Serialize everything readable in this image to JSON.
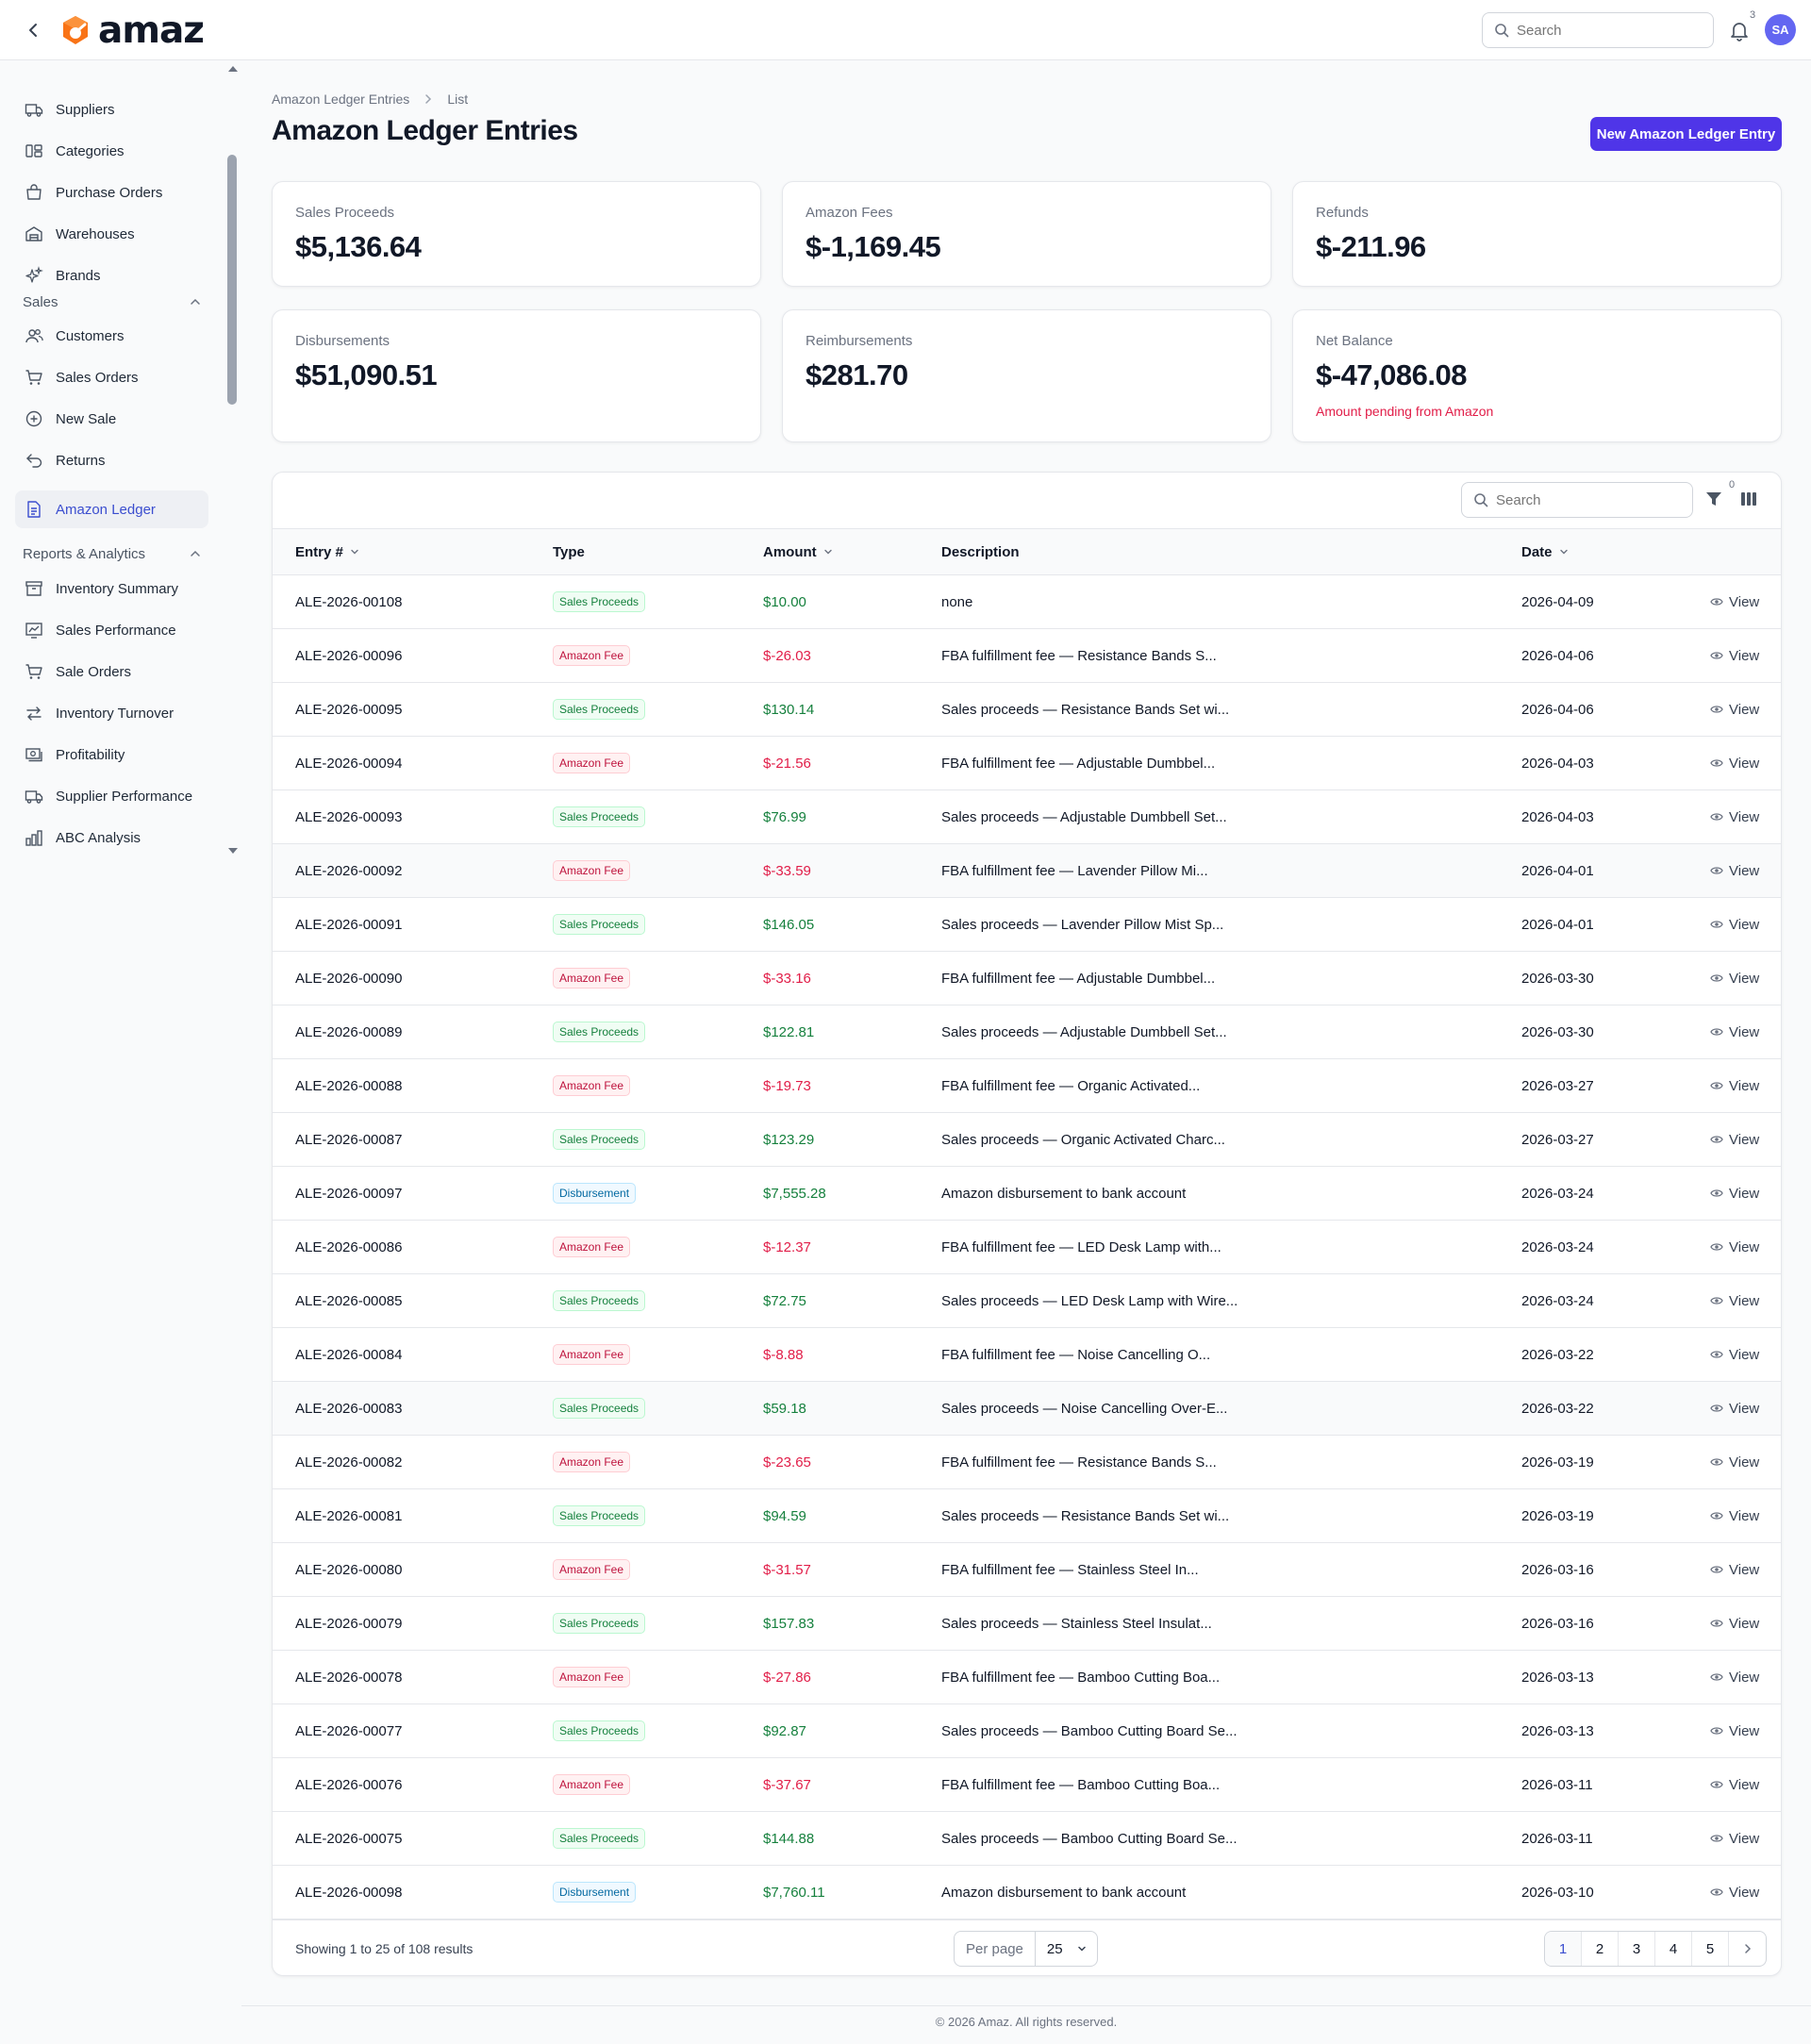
{
  "app": {
    "brand": "amaz"
  },
  "header": {
    "search_placeholder": "Search",
    "notification_count": "3",
    "avatar_initials": "SA"
  },
  "sidebar": {
    "items_top": [
      {
        "label": "Suppliers",
        "icon": "truck-icon"
      },
      {
        "label": "Categories",
        "icon": "categories-icon"
      },
      {
        "label": "Purchase Orders",
        "icon": "purchase-orders-icon"
      },
      {
        "label": "Warehouses",
        "icon": "warehouse-icon"
      },
      {
        "label": "Brands",
        "icon": "sparkles-icon"
      }
    ],
    "group_sales": "Sales",
    "items_sales": [
      {
        "label": "Customers",
        "icon": "users-icon"
      },
      {
        "label": "Sales Orders",
        "icon": "cart-icon"
      },
      {
        "label": "New Sale",
        "icon": "plus-circle-icon"
      },
      {
        "label": "Returns",
        "icon": "return-arrow-icon"
      },
      {
        "label": "Amazon Ledger",
        "icon": "document-icon",
        "active": true
      }
    ],
    "group_reports": "Reports & Analytics",
    "items_reports": [
      {
        "label": "Inventory Summary",
        "icon": "archive-icon"
      },
      {
        "label": "Sales Performance",
        "icon": "chart-line-icon"
      },
      {
        "label": "Sale Orders",
        "icon": "cart-icon"
      },
      {
        "label": "Inventory Turnover",
        "icon": "arrows-swap-icon"
      },
      {
        "label": "Profitability",
        "icon": "cash-icon"
      },
      {
        "label": "Supplier Performance",
        "icon": "truck-icon"
      },
      {
        "label": "ABC Analysis",
        "icon": "bar-chart-icon"
      }
    ]
  },
  "page": {
    "breadcrumb": [
      "Amazon Ledger Entries",
      "List"
    ],
    "title": "Amazon Ledger Entries",
    "new_button": "New Amazon Ledger Entry"
  },
  "stats": [
    {
      "label": "Sales Proceeds",
      "value": "$5,136.64"
    },
    {
      "label": "Amazon Fees",
      "value": "$-1,169.45"
    },
    {
      "label": "Refunds",
      "value": "$-211.96"
    },
    {
      "label": "Disbursements",
      "value": "$51,090.51"
    },
    {
      "label": "Reimbursements",
      "value": "$281.70"
    },
    {
      "label": "Net Balance",
      "value": "$-47,086.08",
      "note": "Amount pending from Amazon"
    }
  ],
  "table": {
    "search_placeholder": "Search",
    "filter_count": "0",
    "columns": [
      "Entry #",
      "Type",
      "Amount",
      "Description",
      "Date"
    ],
    "view_label": "View",
    "rows": [
      {
        "entry": "ALE-2026-00108",
        "type": "Sales Proceeds",
        "kind": "sales",
        "amount": "$10.00",
        "sign": "pos",
        "description": "none",
        "date": "2026-04-09"
      },
      {
        "entry": "ALE-2026-00096",
        "type": "Amazon Fee",
        "kind": "fee",
        "amount": "$-26.03",
        "sign": "neg",
        "description": "FBA fulfillment fee — Resistance Bands S...",
        "date": "2026-04-06"
      },
      {
        "entry": "ALE-2026-00095",
        "type": "Sales Proceeds",
        "kind": "sales",
        "amount": "$130.14",
        "sign": "pos",
        "description": "Sales proceeds — Resistance Bands Set wi...",
        "date": "2026-04-06"
      },
      {
        "entry": "ALE-2026-00094",
        "type": "Amazon Fee",
        "kind": "fee",
        "amount": "$-21.56",
        "sign": "neg",
        "description": "FBA fulfillment fee — Adjustable Dumbbel...",
        "date": "2026-04-03"
      },
      {
        "entry": "ALE-2026-00093",
        "type": "Sales Proceeds",
        "kind": "sales",
        "amount": "$76.99",
        "sign": "pos",
        "description": "Sales proceeds — Adjustable Dumbbell Set...",
        "date": "2026-04-03"
      },
      {
        "entry": "ALE-2026-00092",
        "type": "Amazon Fee",
        "kind": "fee",
        "amount": "$-33.59",
        "sign": "neg",
        "description": "FBA fulfillment fee — Lavender Pillow Mi...",
        "date": "2026-04-01"
      },
      {
        "entry": "ALE-2026-00091",
        "type": "Sales Proceeds",
        "kind": "sales",
        "amount": "$146.05",
        "sign": "pos",
        "description": "Sales proceeds — Lavender Pillow Mist Sp...",
        "date": "2026-04-01"
      },
      {
        "entry": "ALE-2026-00090",
        "type": "Amazon Fee",
        "kind": "fee",
        "amount": "$-33.16",
        "sign": "neg",
        "description": "FBA fulfillment fee — Adjustable Dumbbel...",
        "date": "2026-03-30"
      },
      {
        "entry": "ALE-2026-00089",
        "type": "Sales Proceeds",
        "kind": "sales",
        "amount": "$122.81",
        "sign": "pos",
        "description": "Sales proceeds — Adjustable Dumbbell Set...",
        "date": "2026-03-30"
      },
      {
        "entry": "ALE-2026-00088",
        "type": "Amazon Fee",
        "kind": "fee",
        "amount": "$-19.73",
        "sign": "neg",
        "description": "FBA fulfillment fee — Organic Activated...",
        "date": "2026-03-27"
      },
      {
        "entry": "ALE-2026-00087",
        "type": "Sales Proceeds",
        "kind": "sales",
        "amount": "$123.29",
        "sign": "pos",
        "description": "Sales proceeds — Organic Activated Charc...",
        "date": "2026-03-27"
      },
      {
        "entry": "ALE-2026-00097",
        "type": "Disbursement",
        "kind": "disb",
        "amount": "$7,555.28",
        "sign": "pos",
        "description": "Amazon disbursement to bank account",
        "date": "2026-03-24"
      },
      {
        "entry": "ALE-2026-00086",
        "type": "Amazon Fee",
        "kind": "fee",
        "amount": "$-12.37",
        "sign": "neg",
        "description": "FBA fulfillment fee — LED Desk Lamp with...",
        "date": "2026-03-24"
      },
      {
        "entry": "ALE-2026-00085",
        "type": "Sales Proceeds",
        "kind": "sales",
        "amount": "$72.75",
        "sign": "pos",
        "description": "Sales proceeds — LED Desk Lamp with Wire...",
        "date": "2026-03-24"
      },
      {
        "entry": "ALE-2026-00084",
        "type": "Amazon Fee",
        "kind": "fee",
        "amount": "$-8.88",
        "sign": "neg",
        "description": "FBA fulfillment fee — Noise Cancelling O...",
        "date": "2026-03-22"
      },
      {
        "entry": "ALE-2026-00083",
        "type": "Sales Proceeds",
        "kind": "sales",
        "amount": "$59.18",
        "sign": "pos",
        "description": "Sales proceeds — Noise Cancelling Over-E...",
        "date": "2026-03-22"
      },
      {
        "entry": "ALE-2026-00082",
        "type": "Amazon Fee",
        "kind": "fee",
        "amount": "$-23.65",
        "sign": "neg",
        "description": "FBA fulfillment fee — Resistance Bands S...",
        "date": "2026-03-19"
      },
      {
        "entry": "ALE-2026-00081",
        "type": "Sales Proceeds",
        "kind": "sales",
        "amount": "$94.59",
        "sign": "pos",
        "description": "Sales proceeds — Resistance Bands Set wi...",
        "date": "2026-03-19"
      },
      {
        "entry": "ALE-2026-00080",
        "type": "Amazon Fee",
        "kind": "fee",
        "amount": "$-31.57",
        "sign": "neg",
        "description": "FBA fulfillment fee — Stainless Steel In...",
        "date": "2026-03-16"
      },
      {
        "entry": "ALE-2026-00079",
        "type": "Sales Proceeds",
        "kind": "sales",
        "amount": "$157.83",
        "sign": "pos",
        "description": "Sales proceeds — Stainless Steel Insulat...",
        "date": "2026-03-16"
      },
      {
        "entry": "ALE-2026-00078",
        "type": "Amazon Fee",
        "kind": "fee",
        "amount": "$-27.86",
        "sign": "neg",
        "description": "FBA fulfillment fee — Bamboo Cutting Boa...",
        "date": "2026-03-13"
      },
      {
        "entry": "ALE-2026-00077",
        "type": "Sales Proceeds",
        "kind": "sales",
        "amount": "$92.87",
        "sign": "pos",
        "description": "Sales proceeds — Bamboo Cutting Board Se...",
        "date": "2026-03-13"
      },
      {
        "entry": "ALE-2026-00076",
        "type": "Amazon Fee",
        "kind": "fee",
        "amount": "$-37.67",
        "sign": "neg",
        "description": "FBA fulfillment fee — Bamboo Cutting Boa...",
        "date": "2026-03-11"
      },
      {
        "entry": "ALE-2026-00075",
        "type": "Sales Proceeds",
        "kind": "sales",
        "amount": "$144.88",
        "sign": "pos",
        "description": "Sales proceeds — Bamboo Cutting Board Se...",
        "date": "2026-03-11"
      },
      {
        "entry": "ALE-2026-00098",
        "type": "Disbursement",
        "kind": "disb",
        "amount": "$7,760.11",
        "sign": "pos",
        "description": "Amazon disbursement to bank account",
        "date": "2026-03-10"
      }
    ],
    "showing": "Showing 1 to 25 of 108 results",
    "per_page_label": "Per page",
    "per_page_value": "25",
    "pages": [
      "1",
      "2",
      "3",
      "4",
      "5"
    ],
    "current_page": "1"
  },
  "footer": {
    "copyright": "© 2026 Amaz. All rights reserved."
  },
  "colors": {
    "accent": "#4f35e8",
    "positive": "#15803d",
    "negative": "#e11d48",
    "avatar": "#6366f1",
    "logo": "#f97316"
  }
}
